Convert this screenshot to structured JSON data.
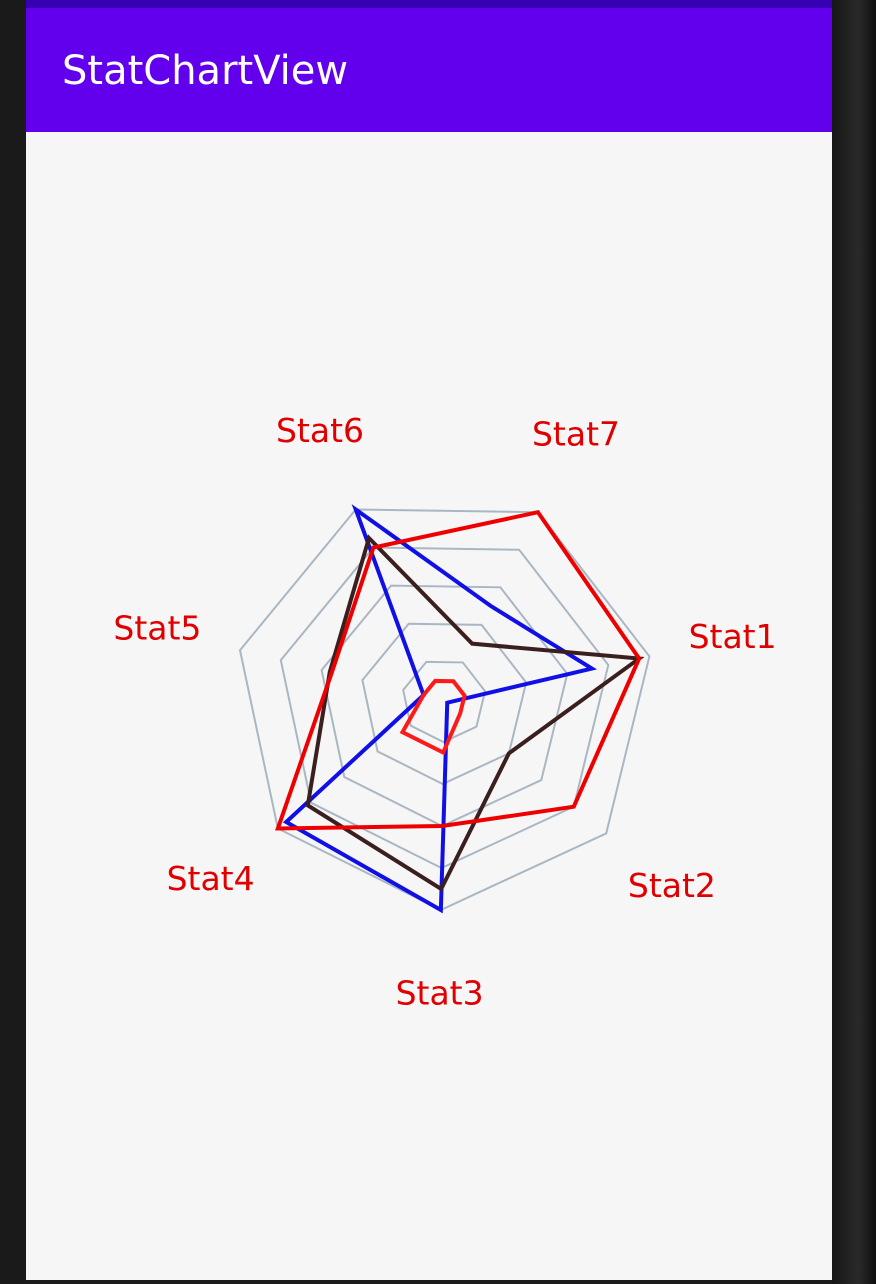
{
  "app": {
    "title": "StatChartView"
  },
  "colors": {
    "status_bar": "#3700b3",
    "app_bar": "#6200ee",
    "background": "#f6f6f6",
    "grid": "#a9b7c3",
    "label": "#e00000"
  },
  "chart_data": {
    "type": "radar",
    "axes": [
      "Stat1",
      "Stat2",
      "Stat3",
      "Stat4",
      "Stat5",
      "Stat6",
      "Stat7"
    ],
    "max": 100,
    "grid_levels": [
      20,
      40,
      60,
      80,
      100
    ],
    "series": [
      {
        "color": "#1010e6",
        "values": [
          72,
          2,
          100,
          95,
          10,
          100,
          50
        ]
      },
      {
        "color": "#3b1f1f",
        "values": [
          95,
          40,
          90,
          82,
          56,
          85,
          30
        ]
      },
      {
        "color": "#ee0000",
        "values": [
          95,
          80,
          60,
          100,
          55,
          80,
          100
        ]
      },
      {
        "color": "#ff1a1a",
        "values": [
          10,
          10,
          25,
          25,
          10,
          10,
          10
        ]
      }
    ]
  }
}
